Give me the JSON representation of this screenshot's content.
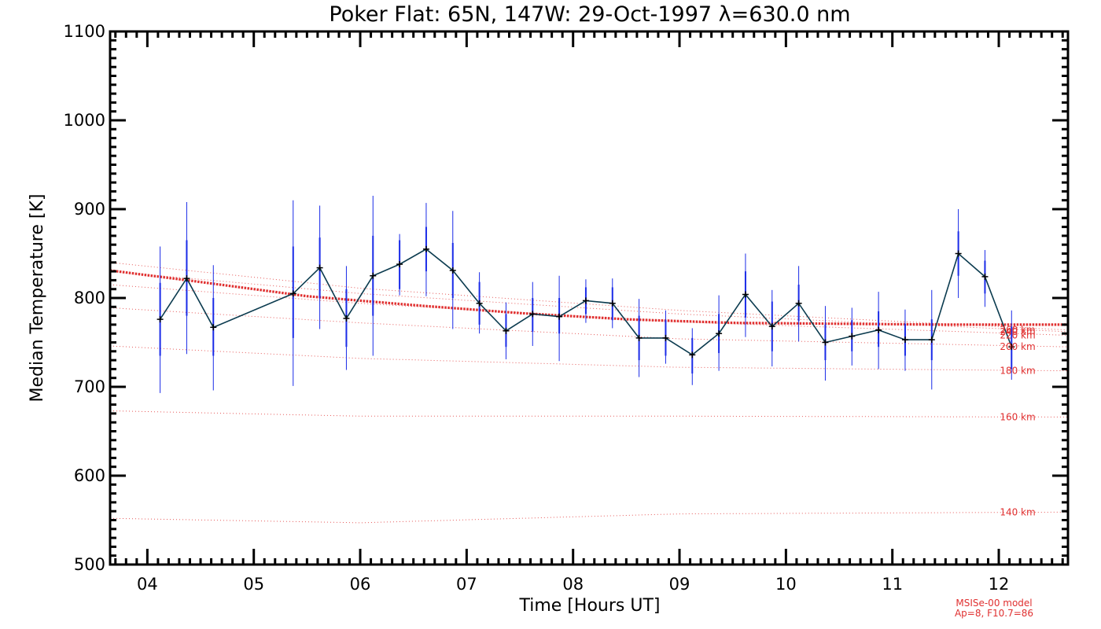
{
  "chart_data": {
    "type": "line",
    "title": "Poker Flat: 65N, 147W: 29-Oct-1997 λ=630.0 nm",
    "xlabel": "Time [Hours UT]",
    "ylabel": "Median Temperature [K]",
    "xlim": [
      3.65,
      12.65
    ],
    "ylim": [
      500,
      1100
    ],
    "x_ticks": [
      4,
      5,
      6,
      7,
      8,
      9,
      10,
      11,
      12
    ],
    "x_tick_labels": [
      "04",
      "05",
      "06",
      "07",
      "08",
      "09",
      "10",
      "11",
      "12"
    ],
    "y_ticks": [
      500,
      600,
      700,
      800,
      900,
      1000,
      1100
    ],
    "y_tick_labels": [
      "500",
      "600",
      "700",
      "800",
      "900",
      "1000",
      "1100"
    ],
    "colors": {
      "series": "#0b3b4f",
      "errorbar": "#1a2be8",
      "model": "#e03030",
      "axis": "#000000"
    },
    "series": [
      {
        "name": "Median Temperature",
        "x": [
          4.12,
          4.37,
          4.62,
          5.37,
          5.62,
          5.87,
          6.12,
          6.37,
          6.62,
          6.87,
          7.12,
          7.37,
          7.62,
          7.87,
          8.12,
          8.37,
          8.62,
          8.87,
          9.12,
          9.37,
          9.62,
          9.87,
          10.12,
          10.37,
          10.62,
          10.87,
          11.12,
          11.37,
          11.62,
          11.87,
          12.12
        ],
        "y": [
          776,
          822,
          767,
          805,
          834,
          777,
          825,
          838,
          855,
          831,
          794,
          763,
          782,
          779,
          797,
          794,
          755,
          755,
          736,
          760,
          804,
          768,
          794,
          750,
          757,
          764,
          753,
          753,
          850,
          824,
          745
        ],
        "inner_err": [
          [
            735,
            817
          ],
          [
            780,
            865
          ],
          [
            735,
            800
          ],
          [
            755,
            858
          ],
          [
            800,
            868
          ],
          [
            745,
            810
          ],
          [
            780,
            870
          ],
          [
            810,
            865
          ],
          [
            830,
            880
          ],
          [
            800,
            862
          ],
          [
            770,
            818
          ],
          [
            745,
            782
          ],
          [
            762,
            800
          ],
          [
            760,
            800
          ],
          [
            782,
            812
          ],
          [
            775,
            812
          ],
          [
            730,
            780
          ],
          [
            735,
            775
          ],
          [
            715,
            755
          ],
          [
            738,
            782
          ],
          [
            778,
            830
          ],
          [
            740,
            796
          ],
          [
            774,
            815
          ],
          [
            730,
            770
          ],
          [
            740,
            775
          ],
          [
            745,
            785
          ],
          [
            735,
            771
          ],
          [
            730,
            776
          ],
          [
            825,
            875
          ],
          [
            805,
            842
          ],
          [
            720,
            768
          ]
        ],
        "outer_err": [
          [
            693,
            858
          ],
          [
            737,
            908
          ],
          [
            696,
            837
          ],
          [
            701,
            910
          ],
          [
            765,
            904
          ],
          [
            719,
            836
          ],
          [
            735,
            915
          ],
          [
            803,
            872
          ],
          [
            802,
            907
          ],
          [
            765,
            898
          ],
          [
            760,
            829
          ],
          [
            731,
            795
          ],
          [
            746,
            818
          ],
          [
            729,
            825
          ],
          [
            772,
            821
          ],
          [
            766,
            822
          ],
          [
            711,
            799
          ],
          [
            726,
            786
          ],
          [
            702,
            766
          ],
          [
            718,
            803
          ],
          [
            756,
            850
          ],
          [
            723,
            809
          ],
          [
            751,
            836
          ],
          [
            707,
            791
          ],
          [
            724,
            789
          ],
          [
            720,
            807
          ],
          [
            718,
            787
          ],
          [
            697,
            809
          ],
          [
            800,
            900
          ],
          [
            790,
            854
          ],
          [
            708,
            786
          ]
        ]
      }
    ],
    "model": {
      "name": "MSISe-00 model",
      "params": "Ap=8, F10.7=86",
      "heavy_curve": {
        "x": [
          3.65,
          4.5,
          5.5,
          6.5,
          7.5,
          8.5,
          9.5,
          10.5,
          11.5,
          12.65
        ],
        "y": [
          831,
          818,
          802,
          792,
          783,
          776,
          772,
          771,
          770,
          770
        ]
      },
      "altitude_curves": [
        {
          "label": "140 km",
          "x": [
            3.65,
            6.0,
            9.0,
            12.65
          ],
          "y": [
            552,
            547,
            557,
            559
          ]
        },
        {
          "label": "160 km",
          "x": [
            3.65,
            6.0,
            9.0,
            12.65
          ],
          "y": [
            673,
            667,
            667,
            666
          ]
        },
        {
          "label": "180 km",
          "x": [
            3.65,
            6.0,
            9.0,
            12.65
          ],
          "y": [
            746,
            732,
            722,
            718
          ]
        },
        {
          "label": "200 km",
          "x": [
            3.65,
            6.0,
            9.0,
            12.65
          ],
          "y": [
            789,
            772,
            754,
            745
          ]
        },
        {
          "label": "220 km",
          "x": [
            3.65,
            6.0,
            9.0,
            12.65
          ],
          "y": [
            815,
            794,
            773,
            758
          ]
        },
        {
          "label": "240 km",
          "x": [
            3.65,
            6.0,
            9.0,
            12.65
          ],
          "y": [
            830,
            805,
            782,
            762
          ]
        },
        {
          "label": "260 km",
          "x": [
            3.65,
            6.0,
            9.0,
            12.65
          ],
          "y": [
            840,
            811,
            786,
            764
          ]
        }
      ]
    }
  }
}
